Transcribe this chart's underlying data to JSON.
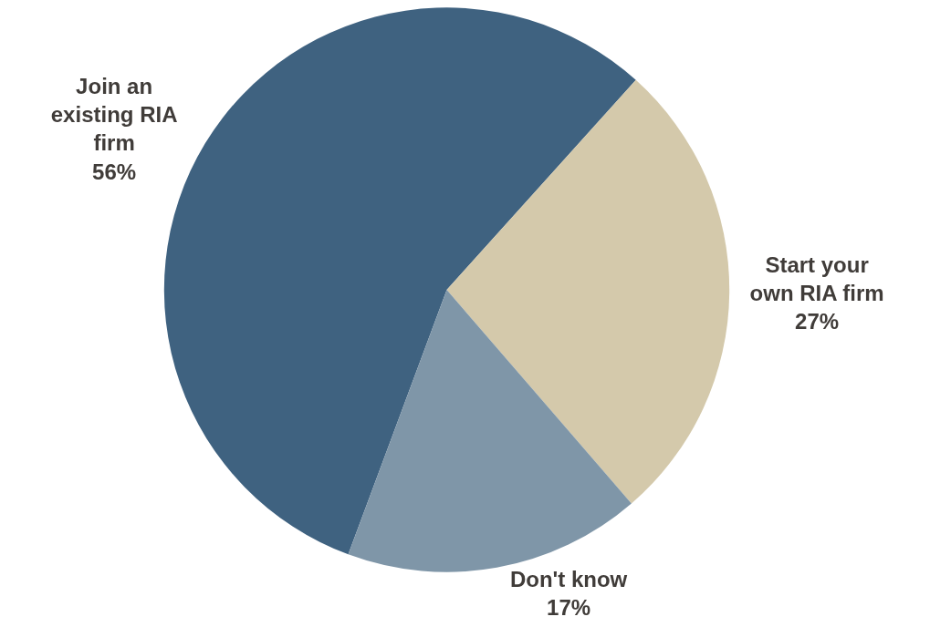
{
  "chart_data": {
    "type": "pie",
    "categories": [
      "Join an\nexisting RIA\nfirm",
      "Start your\nown RIA firm",
      "Don't know"
    ],
    "values": [
      56,
      27,
      17
    ],
    "value_labels": [
      "56%",
      "27%",
      "17%"
    ],
    "colors": [
      "#3f6280",
      "#d4c9ab",
      "#7f96a8"
    ],
    "legend": false
  }
}
